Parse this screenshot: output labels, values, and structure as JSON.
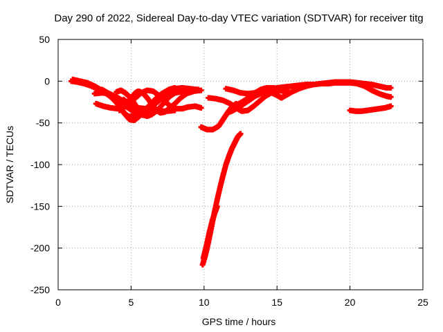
{
  "chart_data": {
    "type": "scatter",
    "title": "Day 290 of 2022, Sidereal Day-to-day VTEC variation (SDTVAR) for receiver titg",
    "xlabel": "GPS time / hours",
    "ylabel": "SDTVAR / TECUs",
    "xlim": [
      0,
      25
    ],
    "ylim": [
      -250,
      50
    ],
    "xticks": [
      0,
      5,
      10,
      15,
      20,
      25
    ],
    "yticks": [
      -250,
      -200,
      -150,
      -100,
      -50,
      0,
      50
    ],
    "grid": true,
    "marker": "plus",
    "color": "#ff0000",
    "series": [
      {
        "name": "s1",
        "points": [
          [
            0.9,
            0
          ],
          [
            1.3,
            -1
          ],
          [
            1.8,
            -3
          ],
          [
            2.3,
            -6
          ],
          [
            2.8,
            -10
          ],
          [
            3.3,
            -15
          ],
          [
            3.8,
            -21
          ],
          [
            4.3,
            -27
          ],
          [
            4.8,
            -32
          ],
          [
            5.2,
            -37
          ],
          [
            5.6,
            -40
          ],
          [
            5.9,
            -41
          ]
        ]
      },
      {
        "name": "s2",
        "points": [
          [
            1.0,
            2
          ],
          [
            1.5,
            0
          ],
          [
            2.0,
            -2
          ],
          [
            2.5,
            -6
          ],
          [
            3.0,
            -11
          ],
          [
            3.5,
            -17
          ],
          [
            3.9,
            -24
          ],
          [
            4.3,
            -32
          ],
          [
            4.6,
            -40
          ],
          [
            4.9,
            -46
          ],
          [
            5.2,
            -47
          ],
          [
            5.5,
            -43
          ],
          [
            5.9,
            -36
          ],
          [
            6.3,
            -28
          ],
          [
            6.7,
            -21
          ],
          [
            7.1,
            -15
          ],
          [
            7.6,
            -10
          ],
          [
            8.0,
            -8
          ]
        ]
      },
      {
        "name": "s3",
        "points": [
          [
            2.5,
            -15
          ],
          [
            3.0,
            -14
          ],
          [
            3.5,
            -15
          ],
          [
            4.0,
            -19
          ],
          [
            4.5,
            -24
          ],
          [
            5.0,
            -29
          ],
          [
            5.5,
            -32
          ],
          [
            6.0,
            -33
          ],
          [
            6.4,
            -30
          ],
          [
            6.8,
            -24
          ],
          [
            7.2,
            -17
          ],
          [
            7.6,
            -12
          ],
          [
            8.0,
            -9
          ],
          [
            8.5,
            -8
          ],
          [
            9.0,
            -9
          ],
          [
            9.5,
            -10
          ]
        ]
      },
      {
        "name": "s4",
        "points": [
          [
            2.6,
            -27
          ],
          [
            3.1,
            -30
          ],
          [
            3.6,
            -32
          ],
          [
            4.1,
            -33
          ],
          [
            4.5,
            -31
          ],
          [
            4.9,
            -26
          ],
          [
            5.3,
            -20
          ],
          [
            5.7,
            -14
          ],
          [
            6.1,
            -11
          ],
          [
            6.5,
            -12
          ],
          [
            6.9,
            -17
          ],
          [
            7.3,
            -24
          ],
          [
            7.7,
            -30
          ],
          [
            8.1,
            -33
          ],
          [
            8.5,
            -33
          ],
          [
            8.9,
            -31
          ],
          [
            9.4,
            -30
          ],
          [
            9.8,
            -32
          ]
        ]
      },
      {
        "name": "s5",
        "points": [
          [
            3.0,
            -10
          ],
          [
            3.5,
            -15
          ],
          [
            3.9,
            -22
          ],
          [
            4.2,
            -30
          ],
          [
            4.5,
            -38
          ],
          [
            4.8,
            -42
          ],
          [
            5.1,
            -42
          ],
          [
            5.5,
            -40
          ],
          [
            6.0,
            -37
          ],
          [
            6.5,
            -36
          ],
          [
            7.0,
            -36
          ],
          [
            7.5,
            -36
          ],
          [
            8.0,
            -35
          ]
        ]
      },
      {
        "name": "s6",
        "points": [
          [
            4.5,
            -22
          ],
          [
            5.0,
            -30
          ],
          [
            5.4,
            -36
          ],
          [
            5.8,
            -37
          ],
          [
            6.2,
            -34
          ],
          [
            6.6,
            -28
          ],
          [
            7.0,
            -22
          ],
          [
            7.4,
            -18
          ],
          [
            7.8,
            -15
          ],
          [
            8.3,
            -13
          ],
          [
            8.8,
            -12
          ],
          [
            9.3,
            -11
          ],
          [
            9.6,
            -10
          ]
        ]
      },
      {
        "name": "s7",
        "points": [
          [
            4.2,
            -35
          ],
          [
            4.6,
            -28
          ],
          [
            5.0,
            -20
          ],
          [
            5.3,
            -14
          ],
          [
            5.5,
            -12
          ],
          [
            5.8,
            -14
          ],
          [
            6.1,
            -20
          ],
          [
            6.4,
            -27
          ],
          [
            6.7,
            -34
          ],
          [
            7.0,
            -38
          ],
          [
            7.3,
            -37
          ],
          [
            7.6,
            -33
          ],
          [
            8.0,
            -27
          ],
          [
            8.4,
            -20
          ],
          [
            8.8,
            -15
          ],
          [
            9.3,
            -12
          ],
          [
            9.8,
            -11
          ]
        ]
      },
      {
        "name": "s8",
        "points": [
          [
            4.0,
            -13
          ],
          [
            4.3,
            -11
          ],
          [
            4.6,
            -14
          ],
          [
            4.9,
            -19
          ],
          [
            5.2,
            -26
          ],
          [
            5.5,
            -34
          ],
          [
            5.8,
            -40
          ],
          [
            6.1,
            -42
          ],
          [
            6.4,
            -40
          ],
          [
            6.8,
            -35
          ],
          [
            7.2,
            -27
          ],
          [
            7.6,
            -19
          ],
          [
            8.0,
            -14
          ],
          [
            8.5,
            -12
          ],
          [
            9.0,
            -12
          ]
        ]
      },
      {
        "name": "s9",
        "points": [
          [
            9.8,
            -55
          ],
          [
            10.2,
            -58
          ],
          [
            10.6,
            -58
          ],
          [
            11.0,
            -54
          ],
          [
            11.3,
            -46
          ],
          [
            11.6,
            -38
          ],
          [
            11.9,
            -31
          ],
          [
            12.2,
            -27
          ]
        ]
      },
      {
        "name": "s10",
        "points": [
          [
            10.3,
            -20
          ],
          [
            10.8,
            -21
          ],
          [
            11.3,
            -23
          ],
          [
            11.8,
            -27
          ],
          [
            12.3,
            -33
          ],
          [
            12.6,
            -36
          ],
          [
            13.0,
            -35
          ],
          [
            13.4,
            -30
          ],
          [
            13.8,
            -24
          ],
          [
            14.2,
            -18
          ],
          [
            14.6,
            -14
          ],
          [
            15.0,
            -11
          ],
          [
            15.5,
            -9
          ]
        ]
      },
      {
        "name": "s11",
        "points": [
          [
            11.9,
            -30
          ],
          [
            12.3,
            -28
          ],
          [
            12.7,
            -24
          ],
          [
            13.1,
            -19
          ],
          [
            13.5,
            -14
          ],
          [
            13.9,
            -10
          ],
          [
            14.3,
            -8
          ],
          [
            14.7,
            -8
          ],
          [
            15.1,
            -9
          ]
        ]
      },
      {
        "name": "s12",
        "points": [
          [
            11.6,
            -38
          ],
          [
            12.0,
            -35
          ],
          [
            12.5,
            -30
          ],
          [
            13.0,
            -24
          ],
          [
            13.5,
            -18
          ],
          [
            14.0,
            -14
          ],
          [
            14.5,
            -12
          ],
          [
            15.0,
            -11
          ],
          [
            15.5,
            -12
          ],
          [
            15.8,
            -13
          ]
        ]
      },
      {
        "name": "s13",
        "points": [
          [
            11.5,
            -9
          ],
          [
            12.0,
            -11
          ],
          [
            12.5,
            -14
          ],
          [
            13.0,
            -15
          ],
          [
            13.5,
            -14
          ],
          [
            14.0,
            -12
          ],
          [
            14.5,
            -13
          ],
          [
            15.0,
            -17
          ],
          [
            15.3,
            -20
          ],
          [
            15.6,
            -17
          ],
          [
            16.0,
            -13
          ],
          [
            16.5,
            -9
          ],
          [
            17.0,
            -6
          ],
          [
            17.5,
            -4
          ],
          [
            18.0,
            -3
          ],
          [
            18.5,
            -2
          ],
          [
            19.0,
            -1
          ],
          [
            19.5,
            -1
          ],
          [
            20.0,
            -1
          ],
          [
            20.5,
            -2
          ],
          [
            21.0,
            -3
          ],
          [
            21.5,
            -4
          ],
          [
            22.0,
            -6
          ],
          [
            22.5,
            -8
          ],
          [
            22.8,
            -8
          ]
        ]
      },
      {
        "name": "s14",
        "points": [
          [
            15.0,
            -8
          ],
          [
            15.5,
            -7
          ],
          [
            16.0,
            -6
          ],
          [
            16.5,
            -5
          ],
          [
            17.0,
            -4
          ],
          [
            17.5,
            -4
          ],
          [
            18.0,
            -3
          ],
          [
            18.5,
            -3
          ],
          [
            19.0,
            -2
          ],
          [
            19.5,
            -2
          ],
          [
            20.0,
            -2
          ],
          [
            20.5,
            -3
          ],
          [
            21.0,
            -6
          ],
          [
            21.5,
            -11
          ],
          [
            22.0,
            -15
          ],
          [
            22.5,
            -18
          ],
          [
            22.8,
            -19
          ]
        ]
      },
      {
        "name": "s15",
        "points": [
          [
            20.0,
            -35
          ],
          [
            20.4,
            -36
          ],
          [
            20.8,
            -36
          ],
          [
            21.2,
            -35
          ],
          [
            21.6,
            -34
          ],
          [
            22.0,
            -33
          ],
          [
            22.4,
            -32
          ],
          [
            22.8,
            -30
          ]
        ]
      },
      {
        "name": "s16",
        "points": [
          [
            9.9,
            -220
          ],
          [
            10.1,
            -208
          ],
          [
            10.3,
            -193
          ],
          [
            10.5,
            -176
          ],
          [
            10.7,
            -158
          ],
          [
            10.9,
            -142
          ],
          [
            11.1,
            -127
          ],
          [
            11.3,
            -113
          ],
          [
            11.5,
            -100
          ],
          [
            11.7,
            -90
          ],
          [
            11.9,
            -81
          ],
          [
            12.1,
            -74
          ],
          [
            12.3,
            -67
          ],
          [
            12.5,
            -63
          ]
        ]
      },
      {
        "name": "s17",
        "points": [
          [
            9.95,
            -212
          ],
          [
            10.15,
            -198
          ],
          [
            10.35,
            -182
          ],
          [
            10.55,
            -168
          ],
          [
            10.75,
            -157
          ],
          [
            10.9,
            -150
          ]
        ]
      }
    ]
  }
}
